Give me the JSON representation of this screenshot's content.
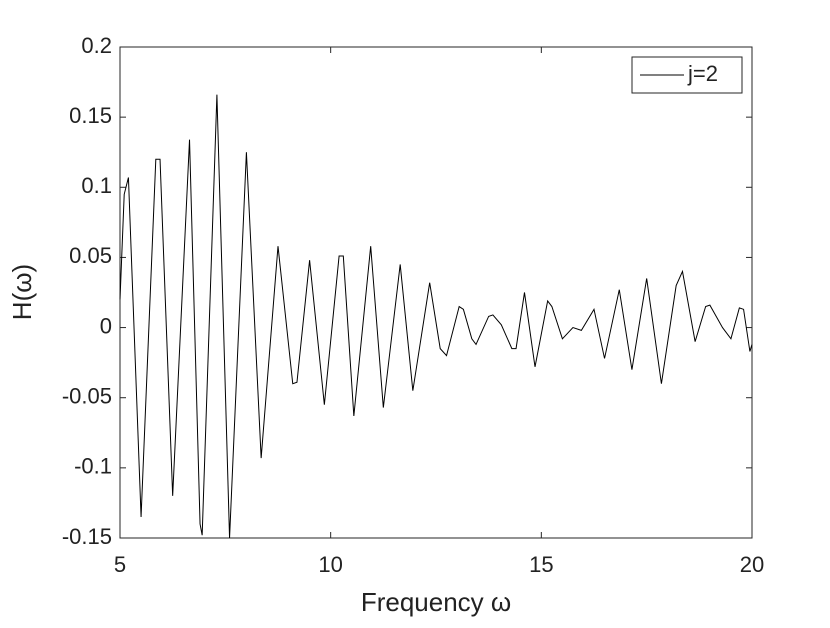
{
  "chart_data": {
    "type": "line",
    "xlabel": "Frequency ω",
    "ylabel": "H(ω)",
    "xlim": [
      5,
      20
    ],
    "xticks": [
      5,
      10,
      15,
      20
    ],
    "ylim": [
      -0.15,
      0.2
    ],
    "yticks": [
      -0.15,
      -0.1,
      -0.05,
      0,
      0.05,
      0.1,
      0.15,
      0.2
    ],
    "legend_position": "upper right",
    "series": [
      {
        "name": "j=2",
        "color": "#000000",
        "x": [
          5.0,
          5.1,
          5.2,
          5.5,
          5.85,
          5.95,
          6.25,
          6.65,
          6.9,
          6.95,
          7.3,
          7.6,
          8.0,
          8.35,
          8.75,
          9.1,
          9.2,
          9.5,
          9.85,
          10.2,
          10.3,
          10.55,
          10.95,
          11.25,
          11.65,
          11.95,
          12.35,
          12.6,
          12.75,
          13.05,
          13.15,
          13.35,
          13.45,
          13.75,
          13.85,
          14.05,
          14.3,
          14.4,
          14.6,
          14.85,
          15.15,
          15.25,
          15.5,
          15.75,
          15.95,
          16.25,
          16.5,
          16.85,
          17.15,
          17.5,
          17.85,
          18.2,
          18.35,
          18.65,
          18.9,
          19.0,
          19.3,
          19.5,
          19.7,
          19.8,
          19.95,
          20.0
        ],
        "values": [
          0.02,
          0.095,
          0.107,
          -0.135,
          0.12,
          0.12,
          -0.12,
          0.134,
          -0.14,
          -0.148,
          0.166,
          -0.15,
          0.125,
          -0.093,
          0.058,
          -0.04,
          -0.039,
          0.048,
          -0.055,
          0.051,
          0.051,
          -0.063,
          0.058,
          -0.057,
          0.045,
          -0.045,
          0.032,
          -0.015,
          -0.02,
          0.015,
          0.013,
          -0.008,
          -0.012,
          0.008,
          0.009,
          0.002,
          -0.015,
          -0.015,
          0.025,
          -0.028,
          0.019,
          0.015,
          -0.008,
          0.0,
          -0.002,
          0.013,
          -0.022,
          0.027,
          -0.03,
          0.035,
          -0.04,
          0.03,
          0.04,
          -0.01,
          0.015,
          0.016,
          0.0,
          -0.008,
          0.014,
          0.013,
          -0.017,
          -0.012
        ]
      }
    ]
  }
}
